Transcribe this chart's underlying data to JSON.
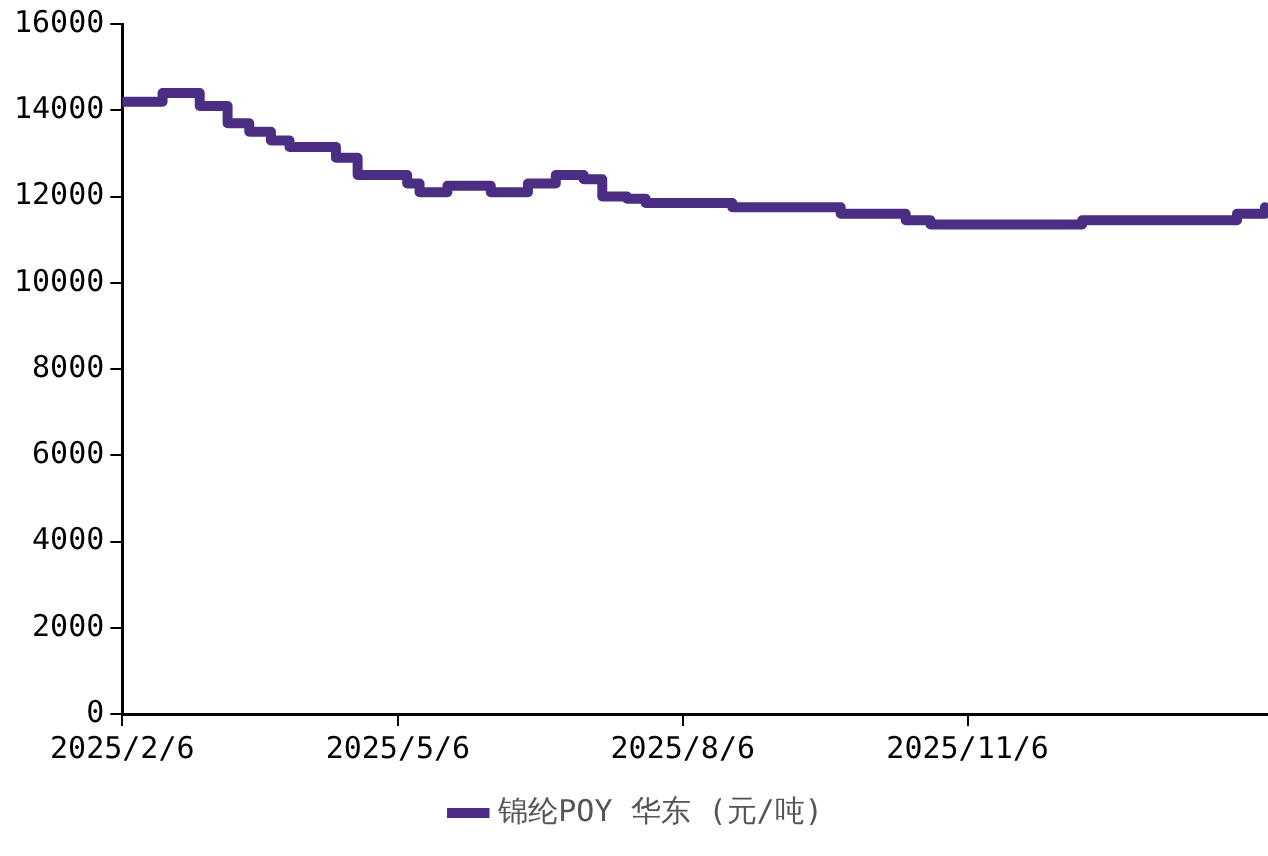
{
  "chart_data": {
    "type": "step",
    "x": [
      "2025-02-06",
      "2025-02-19",
      "2025-03-03",
      "2025-03-12",
      "2025-03-19",
      "2025-03-26",
      "2025-04-01",
      "2025-04-16",
      "2025-04-23",
      "2025-05-09",
      "2025-05-13",
      "2025-05-22",
      "2025-06-05",
      "2025-06-17",
      "2025-06-26",
      "2025-07-05",
      "2025-07-11",
      "2025-07-19",
      "2025-07-25",
      "2025-08-22",
      "2025-09-26",
      "2025-10-17",
      "2025-10-25",
      "2025-12-13",
      "2026-02-01",
      "2026-02-10"
    ],
    "series": [
      {
        "name": "锦纶POY 华东 (元/吨)",
        "color": "#4b2e83",
        "values": [
          14200,
          14400,
          14100,
          13700,
          13500,
          13300,
          13150,
          12900,
          12500,
          12300,
          12100,
          12250,
          12100,
          12300,
          12500,
          12400,
          12000,
          11950,
          11850,
          11750,
          11600,
          11450,
          11350,
          11450,
          11600,
          11750
        ]
      }
    ],
    "xlim": [
      "2025-02-06",
      "2026-02-11"
    ],
    "xticks": [
      {
        "value": "2025-02-06",
        "label": "2025/2/6"
      },
      {
        "value": "2025-05-06",
        "label": "2025/5/6"
      },
      {
        "value": "2025-08-06",
        "label": "2025/8/6"
      },
      {
        "value": "2025-11-06",
        "label": "2025/11/6"
      }
    ],
    "ylim": [
      0,
      16000
    ],
    "yticks": [
      0,
      2000,
      4000,
      6000,
      8000,
      10000,
      12000,
      14000,
      16000
    ],
    "grid": false,
    "legend": "bottom"
  }
}
